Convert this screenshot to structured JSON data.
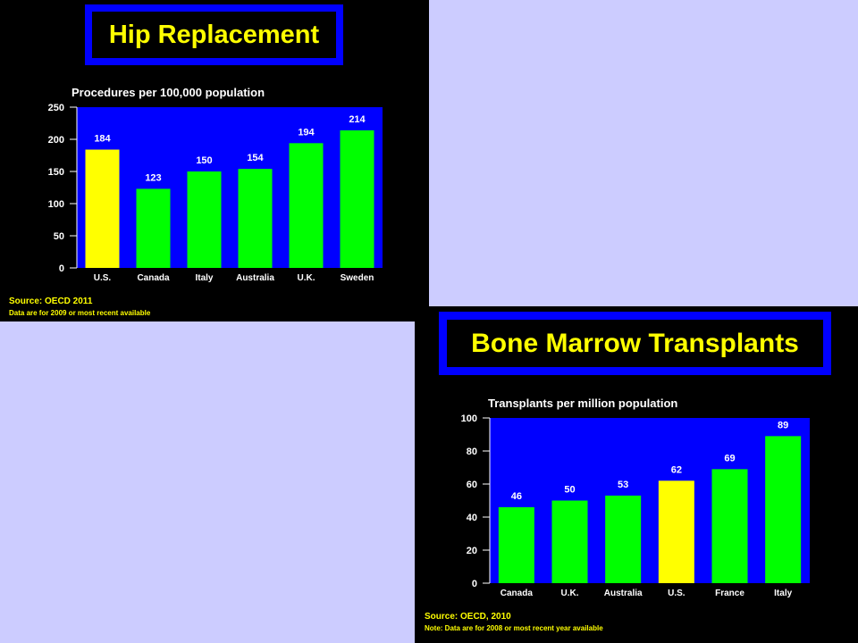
{
  "colors": {
    "background": "#ccccff",
    "panel": "#000000",
    "plot_area": "#0000ff",
    "highlight_bar": "#ffff00",
    "bar": "#00ff00",
    "title_text": "#ffff00",
    "axis_text": "#ffffff"
  },
  "hip": {
    "title": "Hip Replacement",
    "subtitle": "Procedures per 100,000 population",
    "source": "Source: OECD 2011",
    "note": "Data are for 2009 or most recent available"
  },
  "bmt": {
    "title": "Bone Marrow Transplants",
    "subtitle": "Transplants per million population",
    "source": "Source: OECD, 2010",
    "note": "Note: Data are for 2008 or most recent year available"
  },
  "chart_data": [
    {
      "type": "bar",
      "title": "Hip Replacement",
      "subtitle": "Procedures per 100,000 population",
      "categories": [
        "U.S.",
        "Canada",
        "Italy",
        "Australia",
        "U.K.",
        "Sweden"
      ],
      "values": [
        184,
        123,
        150,
        154,
        194,
        214
      ],
      "highlight": "U.S.",
      "ylim": [
        0,
        250
      ],
      "yticks": [
        0,
        50,
        100,
        150,
        200,
        250
      ],
      "xlabel": "",
      "ylabel": "",
      "grid": false
    },
    {
      "type": "bar",
      "title": "Bone Marrow Transplants",
      "subtitle": "Transplants per million population",
      "categories": [
        "Canada",
        "U.K.",
        "Australia",
        "U.S.",
        "France",
        "Italy"
      ],
      "values": [
        46,
        50,
        53,
        62,
        69,
        89
      ],
      "highlight": "U.S.",
      "ylim": [
        0,
        100
      ],
      "yticks": [
        0,
        20,
        40,
        60,
        80,
        100
      ],
      "xlabel": "",
      "ylabel": "",
      "grid": false
    }
  ]
}
